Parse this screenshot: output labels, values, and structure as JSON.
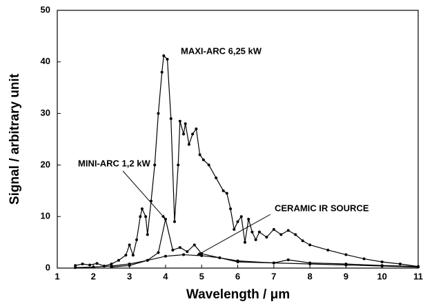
{
  "chart_data": {
    "type": "line",
    "xlabel": "Wavelength / μm",
    "ylabel": "Signal / arbitrary unit",
    "xlim": [
      1,
      11
    ],
    "ylim": [
      0,
      50
    ],
    "xticks": [
      1,
      2,
      3,
      4,
      5,
      6,
      7,
      8,
      9,
      10,
      11
    ],
    "yticks": [
      0,
      10,
      20,
      30,
      40,
      50
    ],
    "grid": false,
    "series": [
      {
        "name": "MAXI-ARC 6,25 kW",
        "color": "#000000",
        "x": [
          1.5,
          1.7,
          1.9,
          2.1,
          2.3,
          2.5,
          2.7,
          2.9,
          3.0,
          3.1,
          3.2,
          3.3,
          3.35,
          3.45,
          3.5,
          3.6,
          3.7,
          3.8,
          3.9,
          3.95,
          4.05,
          4.15,
          4.25,
          4.35,
          4.4,
          4.5,
          4.55,
          4.65,
          4.75,
          4.85,
          4.95,
          5.05,
          5.2,
          5.4,
          5.6,
          5.7,
          5.8,
          5.9,
          6.0,
          6.1,
          6.2,
          6.3,
          6.4,
          6.5,
          6.6,
          6.8,
          7.0,
          7.2,
          7.4,
          7.6,
          7.8,
          8.0,
          8.5,
          9.0,
          9.5,
          10.0,
          10.5,
          11.0
        ],
        "values": [
          0.5,
          0.8,
          0.6,
          0.9,
          0.4,
          0.8,
          1.5,
          2.5,
          4.5,
          2.5,
          5.5,
          10,
          11.5,
          10,
          6.5,
          13,
          20,
          30,
          38,
          41.2,
          40.5,
          29,
          9,
          20,
          28.5,
          26,
          28,
          24,
          26,
          27,
          22,
          21,
          20,
          17.5,
          15,
          14.5,
          11.5,
          7.5,
          9,
          10,
          5,
          9.5,
          7,
          5.5,
          7,
          6,
          7.5,
          6.5,
          7.3,
          6.5,
          5.3,
          4.5,
          3.5,
          2.6,
          1.8,
          1.2,
          0.8,
          0.3
        ]
      },
      {
        "name": "MINI-ARC 1,2 kW",
        "color": "#000000",
        "x": [
          2.5,
          3.0,
          3.5,
          3.8,
          4.0,
          4.2,
          4.4,
          4.6,
          4.8,
          5.0,
          5.5,
          6.0,
          7.0,
          7.4,
          8.0,
          9.0,
          10.0,
          11.0
        ],
        "values": [
          0.2,
          0.5,
          1.5,
          3,
          9.5,
          3.5,
          4,
          3.2,
          4.5,
          2.8,
          2,
          1.2,
          1,
          1.6,
          1,
          0.8,
          0.5,
          0.3
        ]
      },
      {
        "name": "CERAMIC IR SOURCE",
        "color": "#000000",
        "x": [
          1.5,
          2,
          2.5,
          3,
          3.5,
          4,
          4.5,
          5,
          5.5,
          6,
          7,
          8,
          9,
          10,
          11
        ],
        "values": [
          0.1,
          0.2,
          0.4,
          0.8,
          1.5,
          2.3,
          2.6,
          2.4,
          2,
          1.4,
          1,
          0.8,
          0.6,
          0.4,
          0.2
        ]
      }
    ]
  }
}
